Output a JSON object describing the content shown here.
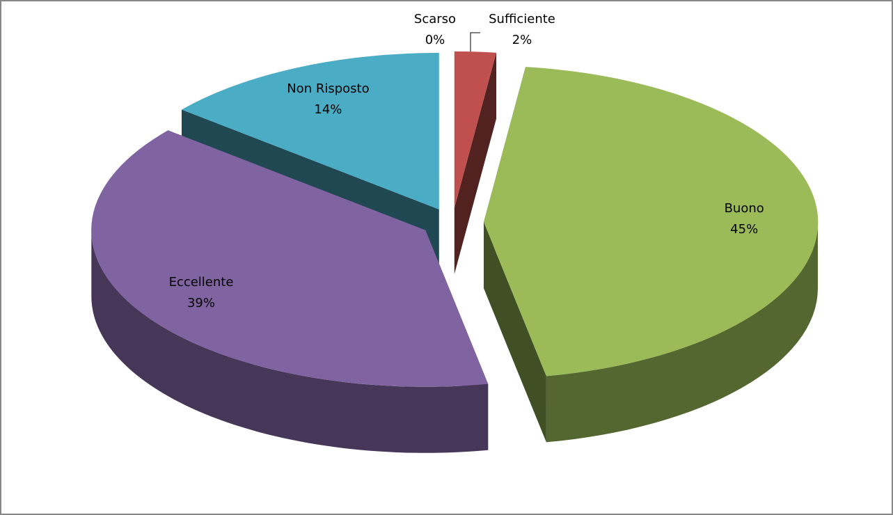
{
  "chart_data": {
    "type": "pie",
    "categories": [
      "Scarso",
      "Sufficiente",
      "Buono",
      "Eccellente",
      "Non Risposto"
    ],
    "values": [
      0,
      2,
      45,
      39,
      14
    ],
    "value_labels": [
      "0%",
      "2%",
      "45%",
      "39%",
      "14%"
    ],
    "colors": [
      "#4f81bd",
      "#c0504d",
      "#9bbb59",
      "#8064a2",
      "#4bacc6"
    ],
    "three_d": true,
    "exploded": true
  }
}
